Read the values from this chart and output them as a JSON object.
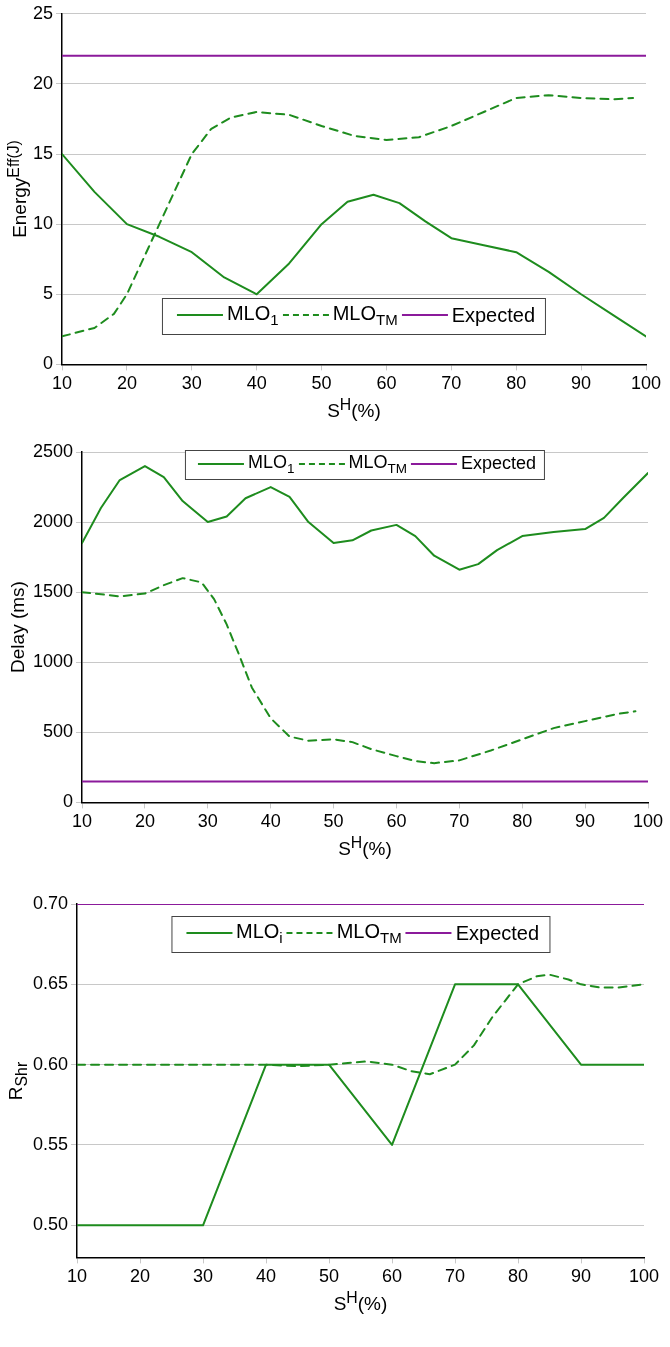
{
  "chart_data": [
    {
      "type": "line",
      "xlabel": "S$^{H}$(%)",
      "ylabel": "Energy$^{Eff(J)}$",
      "xlim": [
        10,
        100
      ],
      "xticks": [
        10,
        20,
        30,
        40,
        50,
        60,
        70,
        80,
        90,
        100
      ],
      "ylim": [
        0,
        25
      ],
      "yticks": [
        0,
        5,
        10,
        15,
        20,
        25
      ],
      "grid": "y",
      "legend": "bottom",
      "marker": "none",
      "series": [
        {
          "name": "MLO$_{1}$",
          "color": "#1e8c1e",
          "line_style": "solid",
          "x": [
            10,
            15,
            20,
            25,
            30,
            35,
            40,
            45,
            50,
            54,
            58,
            62,
            66,
            70,
            75,
            80,
            85,
            90,
            95,
            100
          ],
          "values": [
            15,
            12.3,
            10,
            9.1,
            8,
            6.2,
            5,
            7.2,
            10,
            11.6,
            12.1,
            11.5,
            10.2,
            9,
            8.5,
            8,
            6.6,
            5,
            3.5,
            2
          ]
        },
        {
          "name": "MLO$_{TM}$",
          "color": "#1e8c1e",
          "line_style": "dashed",
          "x": [
            10,
            15,
            18,
            20,
            25,
            30,
            33,
            36,
            40,
            45,
            50,
            55,
            60,
            65,
            70,
            75,
            80,
            85,
            90,
            95,
            98
          ],
          "values": [
            2,
            2.6,
            3.6,
            5,
            10,
            15,
            16.8,
            17.6,
            18,
            17.8,
            17,
            16.3,
            16,
            16.2,
            17,
            18,
            19,
            19.2,
            19,
            18.9,
            19
          ]
        },
        {
          "name": "Expected",
          "color": "#8b1a9b",
          "line_style": "solid",
          "x": [
            10,
            100
          ],
          "values": [
            22,
            22
          ]
        }
      ]
    },
    {
      "type": "line",
      "xlabel": "S$^{H}$(%)",
      "ylabel": "Delay (ms)",
      "xlim": [
        10,
        100
      ],
      "xticks": [
        10,
        20,
        30,
        40,
        50,
        60,
        70,
        80,
        90,
        100
      ],
      "ylim": [
        0,
        2500
      ],
      "yticks": [
        0,
        500,
        1000,
        1500,
        2000,
        2500
      ],
      "grid": "y",
      "legend": "top",
      "marker": "none",
      "series": [
        {
          "name": "MLO$_{1}$",
          "color": "#1e8c1e",
          "line_style": "solid",
          "x": [
            10,
            13,
            16,
            20,
            23,
            26,
            30,
            33,
            36,
            40,
            43,
            46,
            50,
            53,
            56,
            60,
            63,
            66,
            70,
            73,
            76,
            80,
            85,
            90,
            93,
            96,
            100
          ],
          "values": [
            1850,
            2100,
            2300,
            2400,
            2320,
            2150,
            2000,
            2040,
            2170,
            2250,
            2180,
            2000,
            1850,
            1870,
            1940,
            1980,
            1900,
            1760,
            1660,
            1700,
            1800,
            1900,
            1930,
            1950,
            2030,
            2170,
            2350
          ]
        },
        {
          "name": "MLO$_{TM}$",
          "color": "#1e8c1e",
          "line_style": "dashed",
          "x": [
            10,
            16,
            20,
            23,
            26,
            29,
            31,
            33,
            35,
            37,
            40,
            43,
            46,
            50,
            53,
            56,
            60,
            63,
            66,
            70,
            75,
            80,
            85,
            90,
            95,
            98
          ],
          "values": [
            1500,
            1470,
            1490,
            1550,
            1600,
            1570,
            1450,
            1270,
            1050,
            820,
            600,
            470,
            440,
            450,
            430,
            380,
            330,
            295,
            280,
            300,
            370,
            450,
            530,
            580,
            630,
            650
          ]
        },
        {
          "name": "Expected",
          "color": "#8b1a9b",
          "line_style": "solid",
          "x": [
            10,
            100
          ],
          "values": [
            150,
            150
          ]
        }
      ]
    },
    {
      "type": "line",
      "xlabel": "S$^{H}$(%)",
      "ylabel": "R$_{Shr}$",
      "xlim": [
        10,
        100
      ],
      "xticks": [
        10,
        20,
        30,
        40,
        50,
        60,
        70,
        80,
        90,
        100
      ],
      "ylim": [
        0.48,
        0.7
      ],
      "yticks": [
        {
          "value": 0.5,
          "label": "0.50"
        },
        0.55,
        {
          "value": 0.6,
          "label": "0.60"
        },
        0.65,
        {
          "value": 0.7,
          "label": "0.70"
        }
      ],
      "grid": "y",
      "legend": "top",
      "marker": "none",
      "series": [
        {
          "name": "MLO$_{i}$",
          "color": "#1e8c1e",
          "line_style": "solid",
          "x": [
            10,
            20,
            30,
            40,
            50,
            60,
            70,
            80,
            90,
            100
          ],
          "values": [
            0.5,
            0.5,
            0.5,
            0.6,
            0.6,
            0.55,
            0.65,
            0.65,
            0.6,
            0.6
          ]
        },
        {
          "name": "MLO$_{TM}$",
          "color": "#1e8c1e",
          "line_style": "dashed",
          "x": [
            10,
            20,
            30,
            40,
            45,
            50,
            53,
            56,
            60,
            63,
            66,
            70,
            73,
            76,
            80,
            83,
            85,
            88,
            90,
            93,
            96,
            100
          ],
          "values": [
            0.6,
            0.6,
            0.6,
            0.6,
            0.599,
            0.6,
            0.601,
            0.602,
            0.6,
            0.596,
            0.594,
            0.6,
            0.612,
            0.63,
            0.65,
            0.655,
            0.656,
            0.653,
            0.65,
            0.648,
            0.648,
            0.65
          ]
        },
        {
          "name": "Expected",
          "color": "#8b1a9b",
          "line_style": "solid",
          "x": [
            10,
            100
          ],
          "values": [
            0.7,
            0.7
          ]
        }
      ]
    }
  ]
}
